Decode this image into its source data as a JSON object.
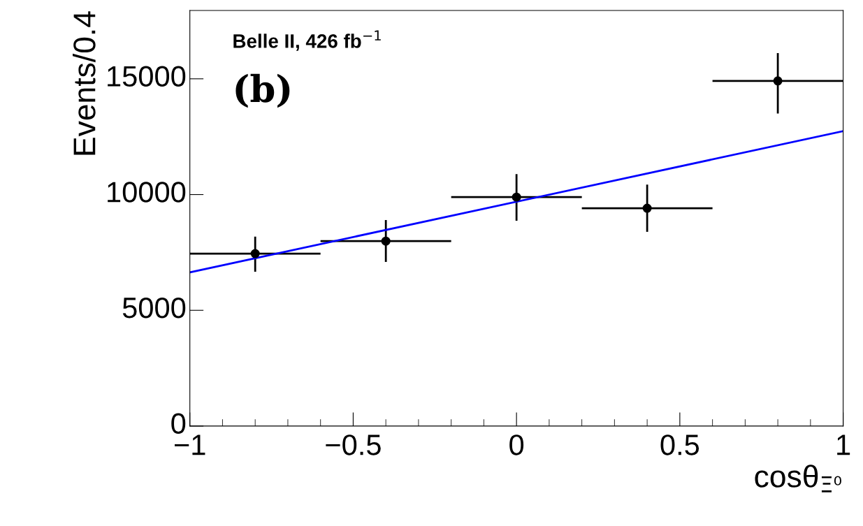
{
  "chart_data": {
    "type": "scatter",
    "xlabel": "cosθ$_{Ξ⁰}$",
    "ylabel": "Events/0.4",
    "xlim": [
      -1,
      1
    ],
    "ylim": [
      0,
      17950
    ],
    "xticks": [
      {
        "value": -1,
        "label": "−1"
      },
      {
        "value": -0.5,
        "label": "−0.5"
      },
      0,
      0.5,
      1
    ],
    "yticks": [
      0,
      5000,
      10000,
      15000
    ],
    "series": [
      {
        "color": "#000000",
        "marker": "circle",
        "x": [
          -0.8,
          -0.4,
          0,
          0.4,
          0.8
        ],
        "values": [
          7450,
          7990,
          9890,
          9410,
          14910
        ],
        "errors": [
          [
            6670,
            8180
          ],
          [
            7090,
            8900
          ],
          [
            8870,
            10880
          ],
          [
            8390,
            10430
          ],
          [
            13500,
            16110
          ]
        ],
        "xerrors": [
          0.2,
          0.2,
          0.2,
          0.2,
          0.2
        ]
      },
      {
        "type": "line",
        "color": "#0000ff",
        "x": [
          -1,
          1
        ],
        "values": [
          6640,
          12740
        ]
      }
    ],
    "annotations": [
      "Belle II, 426 fb$^{−1}$",
      "(b)"
    ],
    "grid": false,
    "legend": false
  }
}
